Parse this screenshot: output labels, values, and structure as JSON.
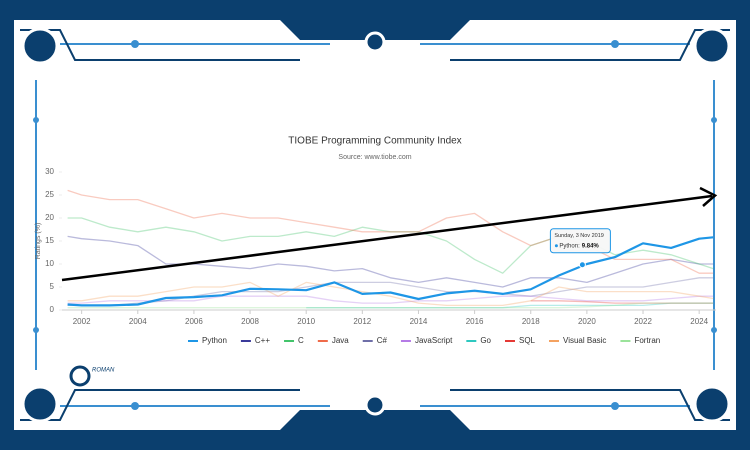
{
  "chart_data": {
    "type": "line",
    "title": "TIOBE Programming Community Index",
    "subtitle": "Source: www.tiobe.com",
    "y_label": "Ratings (%)",
    "x": [
      2001.5,
      2002,
      2003,
      2004,
      2005,
      2006,
      2007,
      2008,
      2009,
      2010,
      2011,
      2012,
      2013,
      2014,
      2015,
      2016,
      2017,
      2018,
      2019,
      2020,
      2021,
      2022,
      2023,
      2024,
      2024.5
    ],
    "xlim": [
      2001.3,
      2024.6
    ],
    "xticks": [
      2002,
      2004,
      2006,
      2008,
      2010,
      2012,
      2014,
      2016,
      2018,
      2020,
      2022,
      2024
    ],
    "ylim": [
      0,
      30
    ],
    "yticks": [
      0,
      5,
      10,
      15,
      20,
      25,
      30
    ],
    "highlight": "Python",
    "series": [
      {
        "name": "Python",
        "color": "#1e96e6",
        "values": [
          1.2,
          1.0,
          1.0,
          1.2,
          2.6,
          2.8,
          3.2,
          4.6,
          4.5,
          4.3,
          6.0,
          3.5,
          3.8,
          2.4,
          3.6,
          4.2,
          3.5,
          4.5,
          7.5,
          10.0,
          11.5,
          14.5,
          13.5,
          15.5,
          15.8
        ]
      },
      {
        "name": "C++",
        "color": "#3a3a9a",
        "values": [
          16,
          15.5,
          15,
          14,
          10,
          10,
          9.5,
          9,
          10,
          9.5,
          8.5,
          9,
          7,
          6,
          7,
          6,
          5,
          7,
          7,
          6,
          8,
          10,
          11,
          10,
          10
        ]
      },
      {
        "name": "C",
        "color": "#43c46b",
        "values": [
          20,
          20,
          18,
          17,
          18,
          17,
          15,
          16,
          16,
          17,
          16,
          18,
          17,
          17,
          15,
          11,
          8,
          14,
          16,
          15,
          12,
          13,
          12,
          10,
          9
        ]
      },
      {
        "name": "Java",
        "color": "#ef6b4a",
        "values": [
          26,
          25,
          24,
          24,
          22,
          20,
          21,
          20,
          20,
          19,
          18,
          17,
          17,
          17,
          20,
          21,
          17,
          14,
          16,
          14,
          11,
          11,
          11,
          8,
          8
        ]
      },
      {
        "name": "C#",
        "color": "#6f6fa8",
        "values": [
          1,
          1,
          1,
          1.5,
          2,
          3,
          4,
          4,
          4,
          5,
          6,
          6,
          6,
          5,
          4,
          4,
          3.5,
          3,
          4,
          5,
          5,
          5,
          6,
          7,
          7
        ]
      },
      {
        "name": "JavaScript",
        "color": "#b57be6",
        "values": [
          1.5,
          1.5,
          2,
          2,
          2,
          2,
          3,
          3,
          3,
          3,
          2,
          1.5,
          1.5,
          2,
          2,
          2.5,
          3,
          3,
          2.5,
          2,
          2,
          2,
          2.5,
          3,
          3
        ]
      },
      {
        "name": "Go",
        "color": "#2ec8c0",
        "values": [
          null,
          null,
          null,
          null,
          null,
          null,
          null,
          null,
          null,
          0.5,
          0.5,
          0.5,
          0.5,
          0.5,
          0.5,
          0.5,
          0.5,
          1,
          1,
          1,
          1,
          1,
          1.5,
          1.5,
          1.5
        ]
      },
      {
        "name": "SQL",
        "color": "#e53935",
        "values": [
          null,
          null,
          null,
          null,
          null,
          null,
          null,
          null,
          null,
          null,
          null,
          null,
          null,
          null,
          null,
          null,
          null,
          2,
          2,
          1.8,
          1.5,
          1.5,
          1.5,
          1.5,
          1.5
        ]
      },
      {
        "name": "Visual Basic",
        "color": "#f4a261",
        "values": [
          2,
          2,
          3,
          3,
          4,
          5,
          5,
          6,
          3,
          6,
          5,
          4,
          3,
          1.5,
          1,
          1,
          1,
          2,
          5,
          4,
          4,
          4,
          4,
          3,
          2.5
        ]
      },
      {
        "name": "Fortran",
        "color": "#9be39b",
        "values": [
          0.5,
          0.5,
          0.5,
          0.5,
          0.5,
          0.5,
          0.5,
          0.5,
          0.5,
          0.5,
          0.5,
          0.5,
          0.5,
          0.5,
          0.5,
          0.5,
          0.5,
          0.5,
          0.5,
          0.7,
          1,
          1.5,
          1.5,
          1.5,
          1.5
        ]
      }
    ],
    "tooltip": {
      "title": "Sunday, 3 Nov 2019",
      "label": "Python:",
      "x": 2019.84,
      "value": 9.84,
      "value_label": "9.84%"
    },
    "logo": "ROMAN"
  }
}
